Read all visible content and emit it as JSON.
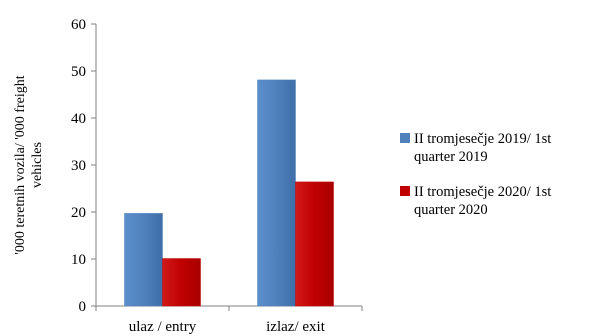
{
  "chart_data": {
    "type": "bar",
    "categories": [
      "ulaz / entry",
      "izlaz/ exit"
    ],
    "series": [
      {
        "name": "II tromjesečje  2019/ 1st quarter 2019",
        "name_lines": [
          "II tromjesečje  2019/ 1st",
          "quarter 2019"
        ],
        "color": "#4F81BD",
        "values": [
          19.7,
          48.1
        ]
      },
      {
        "name": "II tromjesečje 2020/ 1st quarter 2020",
        "name_lines": [
          "II tromjesečje 2020/ 1st",
          "quarter 2020"
        ],
        "color": "#C00000",
        "values": [
          10.1,
          26.4
        ]
      }
    ],
    "title": "",
    "xlabel": "",
    "ylabel": "'000 teretnih vozila/ '000 freight vehicles",
    "ylabel_lines": [
      "'000 teretnih vozila/ '000 freight",
      "vehicles"
    ],
    "ylim": [
      0,
      60
    ],
    "yticks": [
      0,
      10,
      20,
      30,
      40,
      50,
      60
    ],
    "grid": false,
    "legend_position": "right"
  }
}
